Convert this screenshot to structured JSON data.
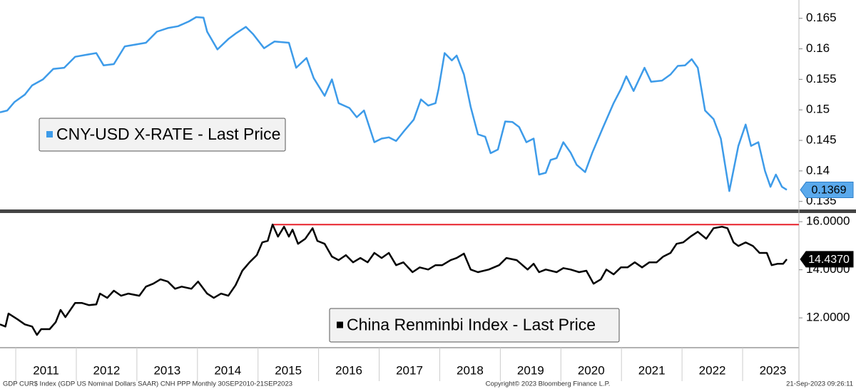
{
  "chart_data": [
    {
      "type": "line",
      "legend": "CNY-USD X-RATE - Last Price",
      "xlim": [
        2010.74,
        2023.93
      ],
      "ylim": [
        0.1338,
        0.168
      ],
      "yticks": [
        0.135,
        0.14,
        0.145,
        0.15,
        0.155,
        0.16,
        0.165
      ],
      "series": [
        {
          "name": "CNY-USD X-RATE",
          "color": "#3d9be9",
          "x": [
            2010.74,
            2010.86,
            2010.98,
            2011.15,
            2011.27,
            2011.45,
            2011.62,
            2011.8,
            2011.98,
            2012.15,
            2012.33,
            2012.45,
            2012.62,
            2012.8,
            2012.98,
            2013.15,
            2013.33,
            2013.51,
            2013.68,
            2013.86,
            2013.98,
            2014.1,
            2014.16,
            2014.33,
            2014.51,
            2014.63,
            2014.8,
            2014.92,
            2015.1,
            2015.27,
            2015.51,
            2015.63,
            2015.8,
            2015.92,
            2016.1,
            2016.22,
            2016.33,
            2016.51,
            2016.63,
            2016.75,
            2016.92,
            2017.04,
            2017.16,
            2017.28,
            2017.4,
            2017.57,
            2017.69,
            2017.81,
            2017.93,
            2017.98,
            2018.08,
            2018.2,
            2018.28,
            2018.4,
            2018.51,
            2018.63,
            2018.75,
            2018.84,
            2018.96,
            2019.08,
            2019.2,
            2019.31,
            2019.43,
            2019.55,
            2019.64,
            2019.75,
            2019.83,
            2019.93,
            2020.04,
            2020.16,
            2020.26,
            2020.4,
            2020.52,
            2020.69,
            2020.87,
            2020.99,
            2021.08,
            2021.2,
            2021.38,
            2021.49,
            2021.67,
            2021.81,
            2021.93,
            2022.05,
            2022.16,
            2022.26,
            2022.38,
            2022.52,
            2022.64,
            2022.78,
            2022.93,
            2023.05,
            2023.14,
            2023.26,
            2023.37,
            2023.46,
            2023.55,
            2023.65,
            2023.73
          ],
          "values": [
            0.1496,
            0.1499,
            0.1513,
            0.1525,
            0.154,
            0.155,
            0.1567,
            0.1569,
            0.1587,
            0.159,
            0.1593,
            0.1573,
            0.1575,
            0.1604,
            0.1607,
            0.161,
            0.1628,
            0.1634,
            0.1637,
            0.1645,
            0.1652,
            0.1651,
            0.1628,
            0.1599,
            0.1616,
            0.1625,
            0.1636,
            0.1624,
            0.1601,
            0.1612,
            0.161,
            0.1569,
            0.1585,
            0.1552,
            0.1523,
            0.155,
            0.1511,
            0.1503,
            0.1488,
            0.1499,
            0.1447,
            0.1453,
            0.1455,
            0.1449,
            0.1464,
            0.1484,
            0.1517,
            0.1507,
            0.1511,
            0.1534,
            0.1593,
            0.1581,
            0.1589,
            0.1558,
            0.1505,
            0.146,
            0.1456,
            0.1429,
            0.1435,
            0.1481,
            0.148,
            0.1472,
            0.1447,
            0.1453,
            0.1394,
            0.1397,
            0.1418,
            0.1421,
            0.1447,
            0.143,
            0.141,
            0.1398,
            0.143,
            0.147,
            0.1511,
            0.1534,
            0.1555,
            0.1531,
            0.1569,
            0.1546,
            0.1548,
            0.1558,
            0.1572,
            0.1573,
            0.1583,
            0.1569,
            0.1499,
            0.1485,
            0.1453,
            0.1367,
            0.1441,
            0.1476,
            0.1441,
            0.1447,
            0.14,
            0.1374,
            0.1394,
            0.1374,
            0.1369
          ],
          "last_price": {
            "value": 0.1369,
            "label": "0.1369"
          }
        }
      ]
    },
    {
      "type": "line",
      "legend": "China Renminbi Index - Last Price",
      "xlim": [
        2010.74,
        2023.93
      ],
      "ylim": [
        10.76,
        16.33
      ],
      "yticks": [
        {
          "value": 12,
          "label": "12.0000"
        },
        {
          "value": 14,
          "label": "14.0000"
        },
        {
          "value": 16,
          "label": "16.0000"
        }
      ],
      "xticks": [
        2011,
        2012,
        2013,
        2014,
        2015,
        2016,
        2017,
        2018,
        2019,
        2020,
        2021,
        2022,
        2023
      ],
      "reference_line": {
        "value": 15.88,
        "x_start": 2015.24,
        "color": "#e8202a"
      },
      "series": [
        {
          "name": "China Renminbi Index",
          "color": "#000000",
          "x": [
            2010.74,
            2010.83,
            2010.88,
            2011.03,
            2011.15,
            2011.27,
            2011.35,
            2011.42,
            2011.56,
            2011.66,
            2011.74,
            2011.82,
            2011.98,
            2012.09,
            2012.21,
            2012.33,
            2012.39,
            2012.51,
            2012.62,
            2012.74,
            2012.86,
            2013.04,
            2013.15,
            2013.27,
            2013.39,
            2013.51,
            2013.63,
            2013.74,
            2013.9,
            2014.01,
            2014.16,
            2014.27,
            2014.39,
            2014.51,
            2014.63,
            2014.74,
            2014.86,
            2014.98,
            2015.07,
            2015.16,
            2015.24,
            2015.33,
            2015.43,
            2015.51,
            2015.57,
            2015.66,
            2015.78,
            2015.9,
            2015.98,
            2016.1,
            2016.22,
            2016.33,
            2016.45,
            2016.57,
            2016.69,
            2016.81,
            2016.92,
            2017.04,
            2017.16,
            2017.28,
            2017.4,
            2017.55,
            2017.67,
            2017.81,
            2017.93,
            2018.04,
            2018.18,
            2018.28,
            2018.4,
            2018.51,
            2018.63,
            2018.81,
            2018.98,
            2019.1,
            2019.27,
            2019.45,
            2019.55,
            2019.64,
            2019.75,
            2019.93,
            2020.04,
            2020.16,
            2020.3,
            2020.42,
            2020.54,
            2020.66,
            2020.75,
            2020.87,
            2020.99,
            2021.1,
            2021.22,
            2021.34,
            2021.46,
            2021.58,
            2021.69,
            2021.81,
            2021.91,
            2022.02,
            2022.14,
            2022.26,
            2022.4,
            2022.52,
            2022.66,
            2022.75,
            2022.85,
            2022.93,
            2023.05,
            2023.17,
            2023.28,
            2023.4,
            2023.48,
            2023.58,
            2023.67,
            2023.73
          ],
          "values": [
            11.73,
            11.64,
            12.18,
            11.94,
            11.73,
            11.64,
            11.29,
            11.53,
            11.53,
            11.82,
            12.33,
            12.03,
            12.62,
            12.62,
            12.53,
            12.56,
            13.01,
            12.83,
            13.13,
            12.92,
            13.01,
            12.92,
            13.3,
            13.42,
            13.6,
            13.51,
            13.21,
            13.3,
            13.21,
            13.51,
            13.01,
            12.83,
            13.01,
            12.92,
            13.36,
            13.96,
            14.31,
            14.61,
            15.14,
            15.2,
            15.88,
            15.38,
            15.79,
            15.38,
            15.67,
            15.08,
            15.29,
            15.73,
            15.2,
            15.08,
            14.55,
            14.4,
            14.61,
            14.31,
            14.49,
            14.31,
            14.7,
            14.49,
            14.7,
            14.19,
            14.31,
            13.9,
            14.1,
            14.01,
            14.19,
            14.19,
            14.4,
            14.49,
            14.67,
            14.01,
            13.9,
            14.01,
            14.19,
            14.49,
            14.4,
            14.01,
            14.25,
            13.9,
            14.01,
            13.9,
            14.07,
            14.01,
            13.9,
            13.96,
            13.42,
            13.6,
            14.01,
            13.81,
            14.1,
            14.1,
            14.31,
            14.1,
            14.31,
            14.31,
            14.55,
            14.7,
            15.08,
            15.14,
            15.38,
            15.58,
            15.29,
            15.73,
            15.79,
            15.73,
            15.14,
            14.99,
            15.14,
            14.99,
            14.7,
            14.7,
            14.19,
            14.25,
            14.25,
            14.437
          ],
          "last_price": {
            "value": 14.437,
            "label": "14.4370"
          }
        }
      ]
    }
  ],
  "footer": {
    "left": "GDP CUR$ Index (GDP US Nominal Dollars SAAR) CNH PPP  Monthly 30SEP2010-21SEP2023",
    "center": "Copyright© 2023 Bloomberg Finance L.P.",
    "right": "21-Sep-2023 09:26:11"
  }
}
